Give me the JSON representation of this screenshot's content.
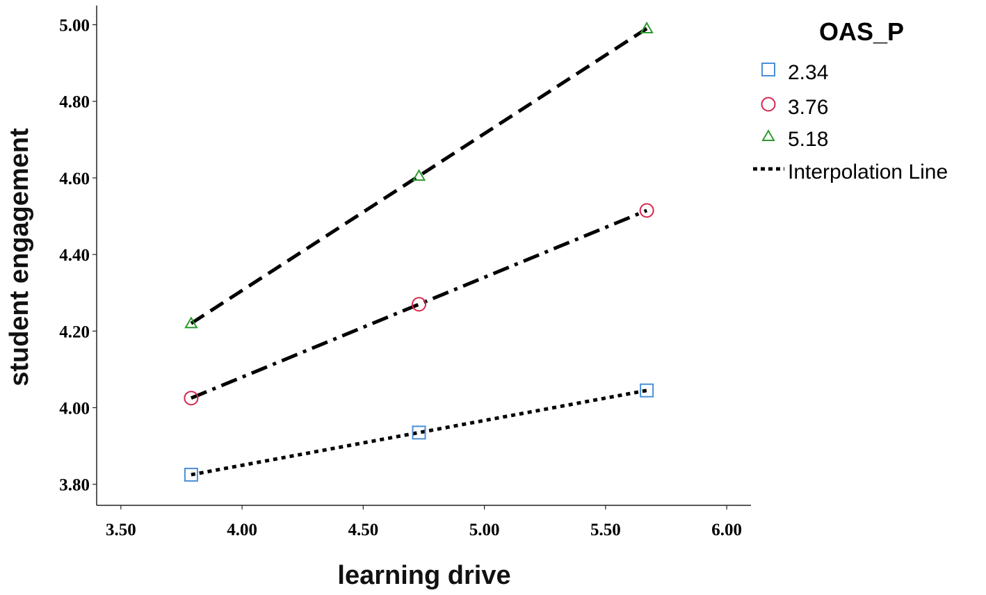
{
  "chart_data": {
    "type": "line",
    "xlabel": "learning drive",
    "ylabel": "student engagement",
    "xlim": [
      3.4,
      6.1
    ],
    "ylim": [
      3.745,
      5.05
    ],
    "x_ticks": [
      "3.50",
      "4.00",
      "4.50",
      "5.00",
      "5.50",
      "6.00"
    ],
    "y_ticks": [
      "3.80",
      "4.00",
      "4.20",
      "4.40",
      "4.60",
      "4.80",
      "5.00"
    ],
    "x_tick_values": [
      3.5,
      4.0,
      4.5,
      5.0,
      5.5,
      6.0
    ],
    "y_tick_values": [
      3.8,
      4.0,
      4.2,
      4.4,
      4.6,
      4.8,
      5.0
    ],
    "x": [
      3.79,
      4.73,
      5.67
    ],
    "grid": false,
    "legend": {
      "title": "OAS_P",
      "placement": "top-right",
      "interpolation_label": "Interpolation Line"
    },
    "series": [
      {
        "name": "2.34",
        "marker": "square",
        "marker_color": "#4a90d9",
        "line_style": "dotted",
        "values": [
          3.825,
          3.935,
          4.045
        ]
      },
      {
        "name": "3.76",
        "marker": "circle",
        "marker_color": "#d6274d",
        "line_style": "dash-dot",
        "values": [
          4.025,
          4.27,
          4.515
        ]
      },
      {
        "name": "5.18",
        "marker": "triangle",
        "marker_color": "#2e9a2e",
        "line_style": "dashed",
        "values": [
          4.22,
          4.605,
          4.99
        ]
      }
    ]
  }
}
